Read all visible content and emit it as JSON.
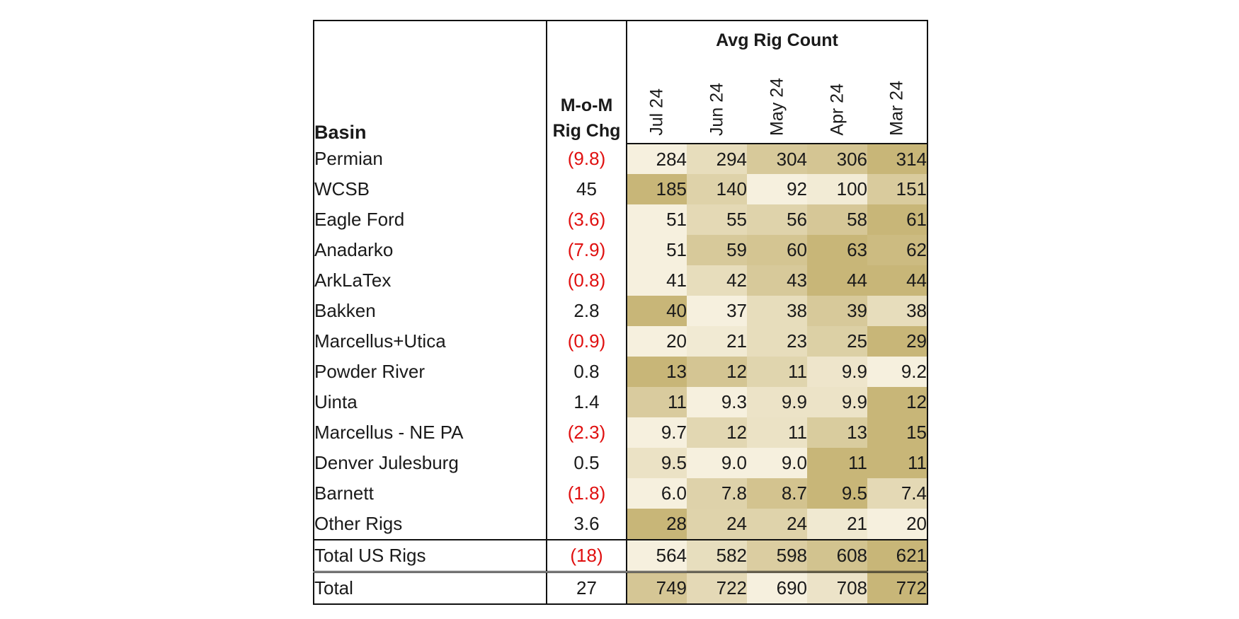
{
  "chart_data": {
    "type": "table",
    "title": "Avg Rig Count",
    "columns": {
      "basin": "Basin",
      "change_line1": "M-o-M",
      "change_line2": "Rig Chg",
      "months": [
        "Jul 24",
        "Jun 24",
        "May 24",
        "Apr 24",
        "Mar 24"
      ]
    },
    "rows": [
      {
        "basin": "Permian",
        "change": "(9.8)",
        "negative": true,
        "values": [
          "284",
          "294",
          "304",
          "306",
          "314"
        ]
      },
      {
        "basin": "WCSB",
        "change": "45",
        "negative": false,
        "values": [
          "185",
          "140",
          "92",
          "100",
          "151"
        ]
      },
      {
        "basin": "Eagle Ford",
        "change": "(3.6)",
        "negative": true,
        "values": [
          "51",
          "55",
          "56",
          "58",
          "61"
        ]
      },
      {
        "basin": "Anadarko",
        "change": "(7.9)",
        "negative": true,
        "values": [
          "51",
          "59",
          "60",
          "63",
          "62"
        ]
      },
      {
        "basin": "ArkLaTex",
        "change": "(0.8)",
        "negative": true,
        "values": [
          "41",
          "42",
          "43",
          "44",
          "44"
        ]
      },
      {
        "basin": "Bakken",
        "change": "2.8",
        "negative": false,
        "values": [
          "40",
          "37",
          "38",
          "39",
          "38"
        ]
      },
      {
        "basin": "Marcellus+Utica",
        "change": "(0.9)",
        "negative": true,
        "values": [
          "20",
          "21",
          "23",
          "25",
          "29"
        ]
      },
      {
        "basin": "Powder River",
        "change": "0.8",
        "negative": false,
        "values": [
          "13",
          "12",
          "11",
          "9.9",
          "9.2"
        ]
      },
      {
        "basin": "Uinta",
        "change": "1.4",
        "negative": false,
        "values": [
          "11",
          "9.3",
          "9.9",
          "9.9",
          "12"
        ]
      },
      {
        "basin": "Marcellus - NE PA",
        "change": "(2.3)",
        "negative": true,
        "values": [
          "9.7",
          "12",
          "11",
          "13",
          "15"
        ]
      },
      {
        "basin": "Denver Julesburg",
        "change": "0.5",
        "negative": false,
        "values": [
          "9.5",
          "9.0",
          "9.0",
          "11",
          "11"
        ]
      },
      {
        "basin": "Barnett",
        "change": "(1.8)",
        "negative": true,
        "values": [
          "6.0",
          "7.8",
          "8.7",
          "9.5",
          "7.4"
        ]
      },
      {
        "basin": "Other Rigs",
        "change": "3.6",
        "negative": false,
        "values": [
          "28",
          "24",
          "24",
          "21",
          "20"
        ]
      },
      {
        "basin": "Total US Rigs",
        "change": "(18)",
        "negative": true,
        "values": [
          "564",
          "582",
          "598",
          "608",
          "621"
        ]
      },
      {
        "basin": "Total",
        "change": "27",
        "negative": false,
        "values": [
          "749",
          "722",
          "690",
          "708",
          "772"
        ]
      }
    ],
    "heatmap_colors": {
      "low": "#f6f0de",
      "high": "#c8b678"
    },
    "negative_color": "#e01010"
  }
}
